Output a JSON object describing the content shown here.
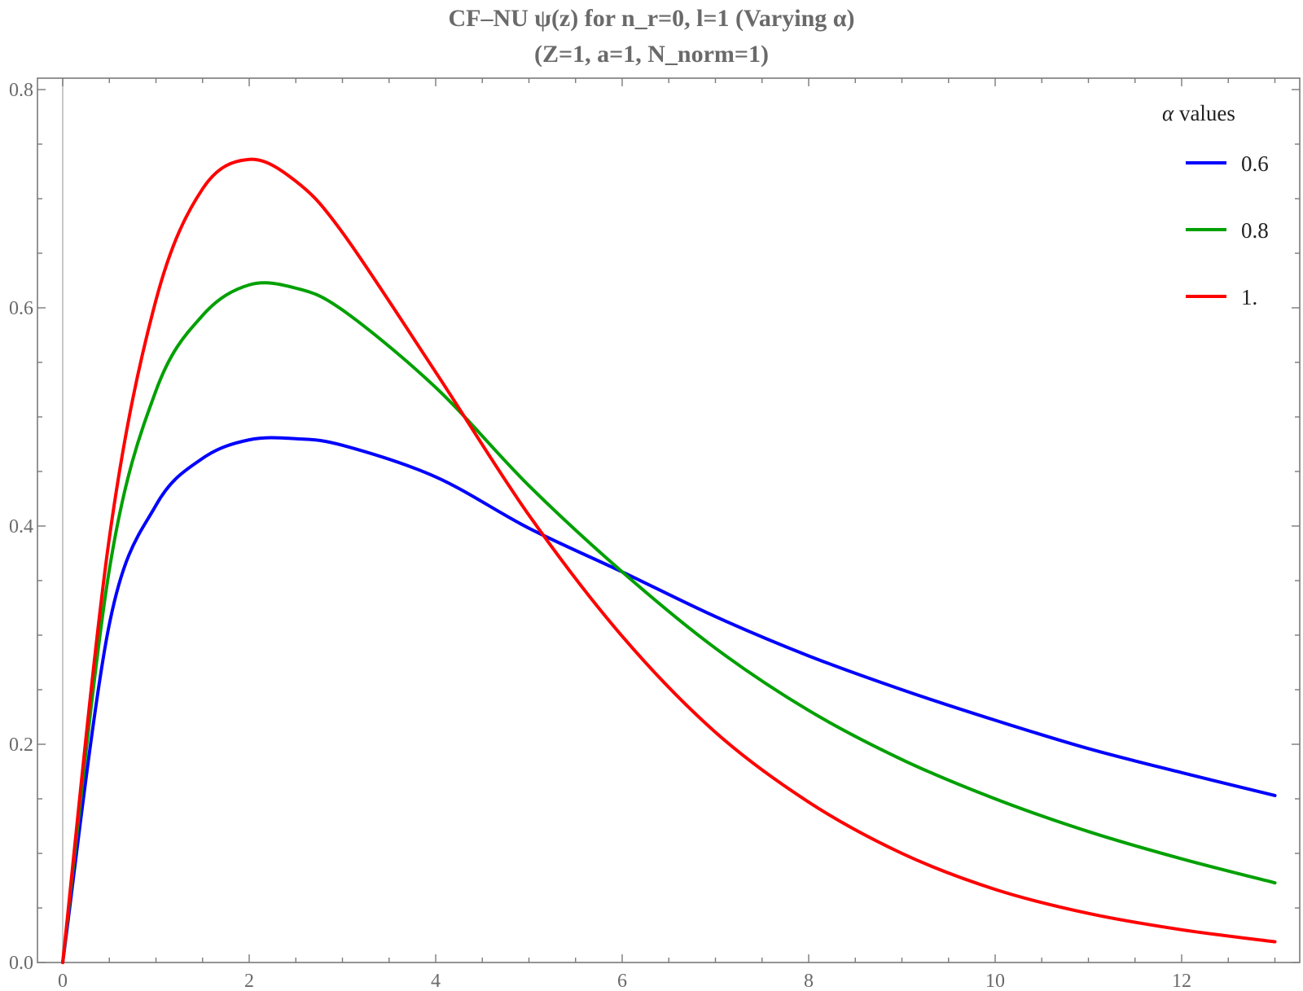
{
  "chart_data": {
    "type": "line",
    "title": "CF–NU ψ(z) for n_r=0, l=1 (Varying α)",
    "subtitle": "(Z=1, a=1, N_norm=1)",
    "xlabel": "",
    "ylabel": "",
    "xlim": [
      0,
      13
    ],
    "ylim": [
      0,
      0.8
    ],
    "grid": false,
    "legend_position": "top-right inside",
    "legend_title": "α values",
    "x_ticks": [
      "0",
      "2",
      "4",
      "6",
      "8",
      "10",
      "12"
    ],
    "y_ticks": [
      "0.0",
      "0.2",
      "0.4",
      "0.6",
      "0.8"
    ],
    "x": [
      0,
      0.5,
      1,
      1.5,
      2,
      2.5,
      3,
      4,
      5,
      6,
      7,
      8,
      9,
      10,
      11,
      12,
      13
    ],
    "series": [
      {
        "name": "0.6",
        "color": "#0000ff",
        "values": [
          0,
          0.31,
          0.419,
          0.462,
          0.479,
          0.48,
          0.474,
          0.445,
          0.398,
          0.358,
          0.317,
          0.281,
          0.25,
          0.222,
          0.196,
          0.174,
          0.153
        ]
      },
      {
        "name": "0.8",
        "color": "#00a000",
        "values": [
          0,
          0.36,
          0.524,
          0.593,
          0.621,
          0.618,
          0.598,
          0.527,
          0.437,
          0.358,
          0.288,
          0.231,
          0.186,
          0.15,
          0.12,
          0.095,
          0.073
        ]
      },
      {
        "name": "1.",
        "color": "#ff0000",
        "values": [
          0,
          0.389,
          0.607,
          0.709,
          0.736,
          0.716,
          0.669,
          0.541,
          0.41,
          0.299,
          0.211,
          0.147,
          0.1,
          0.067,
          0.045,
          0.03,
          0.019
        ]
      }
    ]
  }
}
